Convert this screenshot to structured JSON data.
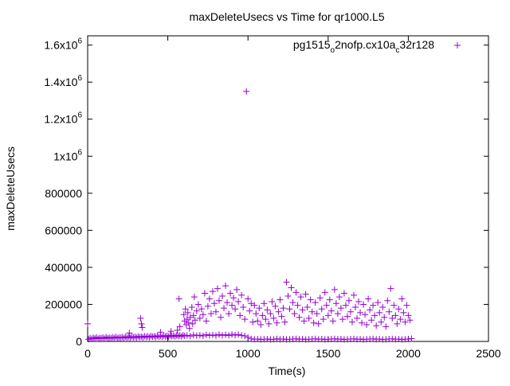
{
  "chart_data": {
    "type": "scatter",
    "title": "maxDeleteUsecs vs Time for qr1000.L5",
    "xlabel": "Time(s)",
    "ylabel": "maxDeleteUsecs",
    "xlim": [
      0,
      2500
    ],
    "ylim": [
      0,
      1650000
    ],
    "x_ticks": [
      {
        "value": 0,
        "label": "0"
      },
      {
        "value": 500,
        "label": "500"
      },
      {
        "value": 1000,
        "label": "1000"
      },
      {
        "value": 1500,
        "label": "1500"
      },
      {
        "value": 2000,
        "label": "2000"
      },
      {
        "value": 2500,
        "label": "2500"
      }
    ],
    "y_ticks": [
      {
        "value": 0,
        "label": "0"
      },
      {
        "value": 200000,
        "label": "200000"
      },
      {
        "value": 400000,
        "label": "400000"
      },
      {
        "value": 600000,
        "label": "600000"
      },
      {
        "value": 800000,
        "label": "800000"
      },
      {
        "value": 1000000,
        "label": "1x10",
        "sup": "6"
      },
      {
        "value": 1200000,
        "label": "1.2x10",
        "sup": "6"
      },
      {
        "value": 1400000,
        "label": "1.4x10",
        "sup": "6"
      },
      {
        "value": 1600000,
        "label": "1.6x10",
        "sup": "6"
      }
    ],
    "grid": false,
    "legend_position": "top-right",
    "series": [
      {
        "name": "pg1515_o2nofp.cx10a_c32r128",
        "name_parts": [
          {
            "text": "pg1515"
          },
          {
            "text": "o",
            "sub": true
          },
          {
            "text": "2nofp.cx10a"
          },
          {
            "text": "c",
            "sub": true
          },
          {
            "text": "32r128"
          }
        ],
        "color": "#9400d3",
        "marker": "plus",
        "points": [
          [
            5,
            12000
          ],
          [
            15,
            18000
          ],
          [
            25,
            14000
          ],
          [
            35,
            20000
          ],
          [
            45,
            16000
          ],
          [
            55,
            22000
          ],
          [
            65,
            15000
          ],
          [
            75,
            19000
          ],
          [
            85,
            17000
          ],
          [
            95,
            21000
          ],
          [
            105,
            16000
          ],
          [
            115,
            23000
          ],
          [
            125,
            18000
          ],
          [
            135,
            20000
          ],
          [
            145,
            17000
          ],
          [
            155,
            22000
          ],
          [
            165,
            19000
          ],
          [
            175,
            24000
          ],
          [
            185,
            18000
          ],
          [
            195,
            21000
          ],
          [
            205,
            20000
          ],
          [
            215,
            23000
          ],
          [
            225,
            19000
          ],
          [
            235,
            25000
          ],
          [
            245,
            21000
          ],
          [
            255,
            24000
          ],
          [
            265,
            20000
          ],
          [
            275,
            26000
          ],
          [
            285,
            22000
          ],
          [
            295,
            25000
          ],
          [
            305,
            21000
          ],
          [
            315,
            27000
          ],
          [
            325,
            23000
          ],
          [
            335,
            26000
          ],
          [
            345,
            22000
          ],
          [
            355,
            28000
          ],
          [
            365,
            24000
          ],
          [
            375,
            27000
          ],
          [
            385,
            23000
          ],
          [
            395,
            29000
          ],
          [
            405,
            25000
          ],
          [
            415,
            28000
          ],
          [
            425,
            24000
          ],
          [
            435,
            30000
          ],
          [
            445,
            26000
          ],
          [
            455,
            29000
          ],
          [
            465,
            25000
          ],
          [
            475,
            31000
          ],
          [
            485,
            27000
          ],
          [
            495,
            30000
          ],
          [
            505,
            26000
          ],
          [
            515,
            32000
          ],
          [
            525,
            28000
          ],
          [
            535,
            31000
          ],
          [
            545,
            27000
          ],
          [
            555,
            33000
          ],
          [
            565,
            29000
          ],
          [
            575,
            32000
          ],
          [
            585,
            28000
          ],
          [
            595,
            34000
          ],
          [
            605,
            30000
          ],
          [
            620,
            33000
          ],
          [
            640,
            29000
          ],
          [
            660,
            35000
          ],
          [
            680,
            31000
          ],
          [
            700,
            34000
          ],
          [
            720,
            30000
          ],
          [
            740,
            36000
          ],
          [
            760,
            32000
          ],
          [
            780,
            35000
          ],
          [
            800,
            31000
          ],
          [
            820,
            37000
          ],
          [
            840,
            33000
          ],
          [
            860,
            36000
          ],
          [
            880,
            32000
          ],
          [
            900,
            38000
          ],
          [
            920,
            34000
          ],
          [
            940,
            37000
          ],
          [
            960,
            33000
          ],
          [
            980,
            30000
          ],
          [
            1000,
            22000
          ],
          [
            1020,
            14000
          ],
          [
            1040,
            12000
          ],
          [
            1060,
            13000
          ],
          [
            1080,
            11000
          ],
          [
            1100,
            12000
          ],
          [
            1120,
            13000
          ],
          [
            1140,
            11000
          ],
          [
            1160,
            12000
          ],
          [
            1180,
            14000
          ],
          [
            1200,
            12000
          ],
          [
            1220,
            13000
          ],
          [
            1240,
            11000
          ],
          [
            1260,
            12000
          ],
          [
            1280,
            13000
          ],
          [
            1300,
            14000
          ],
          [
            1320,
            12000
          ],
          [
            1340,
            13000
          ],
          [
            1360,
            11000
          ],
          [
            1380,
            12000
          ],
          [
            1400,
            13000
          ],
          [
            1420,
            14000
          ],
          [
            1440,
            12000
          ],
          [
            1460,
            13000
          ],
          [
            1480,
            11000
          ],
          [
            1500,
            12000
          ],
          [
            1520,
            13000
          ],
          [
            1540,
            14000
          ],
          [
            1560,
            12000
          ],
          [
            1580,
            13000
          ],
          [
            1600,
            11000
          ],
          [
            1620,
            12000
          ],
          [
            1640,
            13000
          ],
          [
            1660,
            14000
          ],
          [
            1680,
            12000
          ],
          [
            1700,
            13000
          ],
          [
            1720,
            11000
          ],
          [
            1740,
            12000
          ],
          [
            1760,
            13000
          ],
          [
            1780,
            14000
          ],
          [
            1800,
            12000
          ],
          [
            1820,
            13000
          ],
          [
            1840,
            11000
          ],
          [
            1860,
            12000
          ],
          [
            1880,
            13000
          ],
          [
            1900,
            14000
          ],
          [
            1920,
            12000
          ],
          [
            1940,
            13000
          ],
          [
            1960,
            11000
          ],
          [
            1980,
            12000
          ],
          [
            2000,
            13000
          ],
          [
            2020,
            15000
          ],
          [
            0,
            95000
          ],
          [
            260,
            45000
          ],
          [
            330,
            125000
          ],
          [
            335,
            95000
          ],
          [
            340,
            75000
          ],
          [
            455,
            50000
          ],
          [
            520,
            55000
          ],
          [
            560,
            60000
          ],
          [
            570,
            230000
          ],
          [
            575,
            80000
          ],
          [
            600,
            145000
          ],
          [
            605,
            110000
          ],
          [
            610,
            175000
          ],
          [
            615,
            90000
          ],
          [
            620,
            120000
          ],
          [
            625,
            155000
          ],
          [
            630,
            100000
          ],
          [
            635,
            70000
          ],
          [
            640,
            130000
          ],
          [
            650,
            185000
          ],
          [
            655,
            95000
          ],
          [
            660,
            140000
          ],
          [
            665,
            240000
          ],
          [
            670,
            115000
          ],
          [
            680,
            165000
          ],
          [
            690,
            200000
          ],
          [
            700,
            125000
          ],
          [
            710,
            175000
          ],
          [
            720,
            145000
          ],
          [
            730,
            260000
          ],
          [
            740,
            110000
          ],
          [
            750,
            190000
          ],
          [
            760,
            230000
          ],
          [
            770,
            150000
          ],
          [
            780,
            270000
          ],
          [
            790,
            205000
          ],
          [
            800,
            160000
          ],
          [
            810,
            285000
          ],
          [
            820,
            220000
          ],
          [
            830,
            130000
          ],
          [
            840,
            245000
          ],
          [
            850,
            180000
          ],
          [
            860,
            300000
          ],
          [
            870,
            210000
          ],
          [
            880,
            150000
          ],
          [
            890,
            260000
          ],
          [
            900,
            195000
          ],
          [
            910,
            235000
          ],
          [
            920,
            175000
          ],
          [
            930,
            280000
          ],
          [
            940,
            215000
          ],
          [
            950,
            140000
          ],
          [
            960,
            250000
          ],
          [
            970,
            185000
          ],
          [
            980,
            120000
          ],
          [
            990,
            1350000
          ],
          [
            1000,
            230000
          ],
          [
            1010,
            165000
          ],
          [
            1020,
            205000
          ],
          [
            1030,
            105000
          ],
          [
            1040,
            195000
          ],
          [
            1050,
            150000
          ],
          [
            1060,
            110000
          ],
          [
            1070,
            180000
          ],
          [
            1080,
            90000
          ],
          [
            1090,
            140000
          ],
          [
            1100,
            205000
          ],
          [
            1110,
            120000
          ],
          [
            1120,
            170000
          ],
          [
            1130,
            95000
          ],
          [
            1140,
            150000
          ],
          [
            1150,
            215000
          ],
          [
            1160,
            125000
          ],
          [
            1170,
            190000
          ],
          [
            1180,
            100000
          ],
          [
            1190,
            160000
          ],
          [
            1200,
            225000
          ],
          [
            1210,
            135000
          ],
          [
            1220,
            180000
          ],
          [
            1230,
            105000
          ],
          [
            1240,
            320000
          ],
          [
            1250,
            245000
          ],
          [
            1260,
            175000
          ],
          [
            1270,
            290000
          ],
          [
            1280,
            210000
          ],
          [
            1290,
            150000
          ],
          [
            1300,
            265000
          ],
          [
            1310,
            195000
          ],
          [
            1320,
            130000
          ],
          [
            1330,
            240000
          ],
          [
            1340,
            170000
          ],
          [
            1350,
            110000
          ],
          [
            1360,
            255000
          ],
          [
            1370,
            185000
          ],
          [
            1380,
            125000
          ],
          [
            1390,
            225000
          ],
          [
            1400,
            160000
          ],
          [
            1410,
            100000
          ],
          [
            1420,
            210000
          ],
          [
            1430,
            150000
          ],
          [
            1440,
            95000
          ],
          [
            1450,
            235000
          ],
          [
            1460,
            175000
          ],
          [
            1470,
            120000
          ],
          [
            1480,
            265000
          ],
          [
            1490,
            195000
          ],
          [
            1500,
            140000
          ],
          [
            1510,
            225000
          ],
          [
            1520,
            165000
          ],
          [
            1530,
            110000
          ],
          [
            1540,
            280000
          ],
          [
            1550,
            205000
          ],
          [
            1560,
            150000
          ],
          [
            1570,
            240000
          ],
          [
            1580,
            180000
          ],
          [
            1590,
            120000
          ],
          [
            1600,
            260000
          ],
          [
            1610,
            195000
          ],
          [
            1620,
            135000
          ],
          [
            1630,
            220000
          ],
          [
            1640,
            160000
          ],
          [
            1650,
            105000
          ],
          [
            1660,
            250000
          ],
          [
            1670,
            185000
          ],
          [
            1680,
            125000
          ],
          [
            1690,
            215000
          ],
          [
            1700,
            155000
          ],
          [
            1710,
            100000
          ],
          [
            1720,
            200000
          ],
          [
            1730,
            145000
          ],
          [
            1740,
            90000
          ],
          [
            1750,
            230000
          ],
          [
            1760,
            170000
          ],
          [
            1770,
            115000
          ],
          [
            1780,
            195000
          ],
          [
            1790,
            140000
          ],
          [
            1800,
            85000
          ],
          [
            1810,
            210000
          ],
          [
            1820,
            155000
          ],
          [
            1830,
            105000
          ],
          [
            1840,
            185000
          ],
          [
            1850,
            130000
          ],
          [
            1860,
            80000
          ],
          [
            1870,
            220000
          ],
          [
            1880,
            160000
          ],
          [
            1890,
            285000
          ],
          [
            1900,
            125000
          ],
          [
            1910,
            195000
          ],
          [
            1920,
            140000
          ],
          [
            1930,
            95000
          ],
          [
            1940,
            175000
          ],
          [
            1950,
            120000
          ],
          [
            1960,
            230000
          ],
          [
            1970,
            155000
          ],
          [
            1980,
            105000
          ],
          [
            1990,
            195000
          ],
          [
            2000,
            140000
          ],
          [
            2010,
            115000
          ]
        ]
      }
    ]
  }
}
